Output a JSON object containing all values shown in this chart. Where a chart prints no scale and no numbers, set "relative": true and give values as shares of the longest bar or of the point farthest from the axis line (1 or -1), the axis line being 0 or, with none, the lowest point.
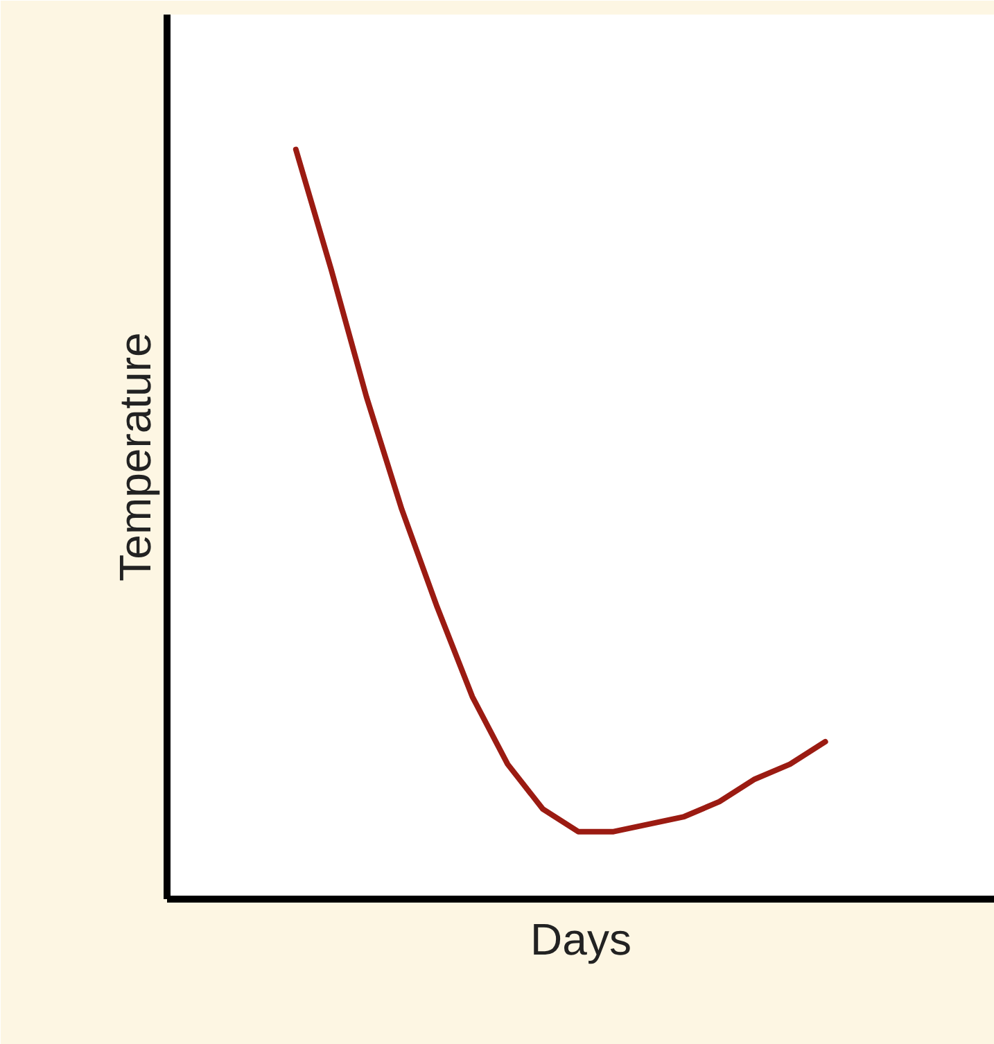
{
  "chart_data": {
    "type": "line",
    "xlabel": "Days",
    "ylabel": "Temperature",
    "relative": true,
    "grid": false,
    "categories": [
      null,
      null,
      null,
      null,
      null,
      null,
      null,
      null,
      null,
      null,
      null,
      null,
      null,
      null,
      null,
      null
    ],
    "series": [
      {
        "color": "#9b1b12",
        "values": [
          1,
          0.84,
          0.67,
          0.52,
          0.39,
          0.27,
          0.18,
          0.12,
          0.09,
          0.09,
          0.1,
          0.11,
          0.13,
          0.16,
          0.18,
          0.21
        ]
      }
    ]
  }
}
